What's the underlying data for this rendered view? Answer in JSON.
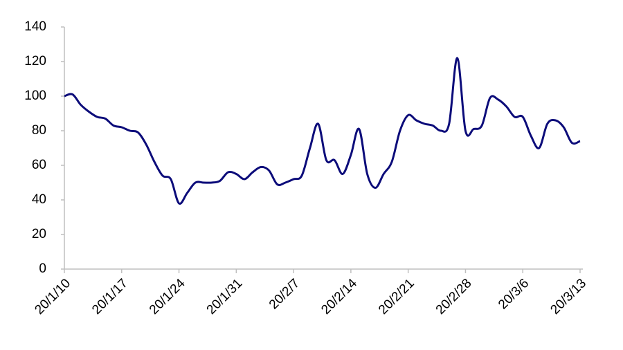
{
  "chart_data": {
    "type": "line",
    "categories": [
      "20/1/10",
      null,
      null,
      null,
      null,
      null,
      null,
      "20/1/17",
      null,
      null,
      null,
      null,
      null,
      null,
      "20/1/24",
      null,
      null,
      null,
      null,
      null,
      null,
      "20/1/31",
      null,
      null,
      null,
      null,
      null,
      null,
      "20/2/7",
      null,
      null,
      null,
      null,
      null,
      null,
      "20/2/14",
      null,
      null,
      null,
      null,
      null,
      null,
      "20/2/21",
      null,
      null,
      null,
      null,
      null,
      null,
      "20/2/28",
      null,
      null,
      null,
      null,
      null,
      null,
      "20/3/6",
      null,
      null,
      null,
      null,
      null,
      null,
      "20/3/13"
    ],
    "series": [
      {
        "color": "#0c0c7a",
        "values": [
          100,
          101,
          95,
          91,
          88,
          87,
          83,
          82,
          80,
          79,
          72,
          62,
          54,
          52,
          38,
          44,
          50,
          50,
          50,
          51,
          56,
          55,
          52,
          56,
          59,
          57,
          49,
          50,
          52,
          54,
          70,
          84,
          63,
          63,
          55,
          66,
          81,
          55,
          47,
          55,
          62,
          80,
          89,
          86,
          84,
          83,
          80,
          84,
          122,
          80,
          81,
          83,
          99,
          98,
          94,
          88,
          88,
          77,
          70,
          84,
          86,
          82,
          73,
          74
        ]
      }
    ],
    "ylim": [
      0,
      140
    ],
    "yticks": [
      0,
      20,
      40,
      60,
      80,
      100,
      120,
      140
    ],
    "grid": false
  }
}
